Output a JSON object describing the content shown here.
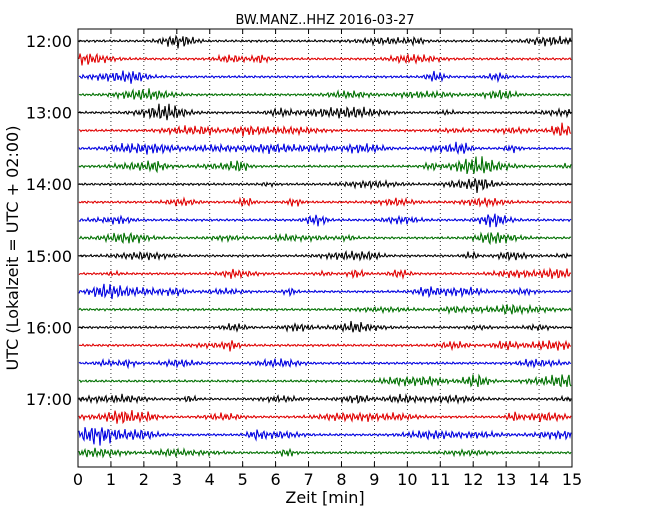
{
  "chart_data": {
    "type": "line",
    "title": "BW.MANZ..HHZ 2016-03-27",
    "xlabel": "Zeit  [min]",
    "ylabel": "UTC (Lokalzeit = UTC + 02:00)",
    "xlim": [
      0,
      15
    ],
    "x_ticks": [
      "0",
      "1",
      "2",
      "3",
      "4",
      "5",
      "6",
      "7",
      "8",
      "9",
      "10",
      "11",
      "12",
      "13",
      "14",
      "15"
    ],
    "y_ticks": [
      "12:00",
      "13:00",
      "14:00",
      "15:00",
      "16:00",
      "17:00"
    ],
    "trace_start": "12:00",
    "trace_interval_minutes": 15,
    "trace_count": 24,
    "trace_colors": [
      "#000000",
      "#e00000",
      "#0000e0",
      "#007000"
    ],
    "grid": "vertical dotted"
  }
}
